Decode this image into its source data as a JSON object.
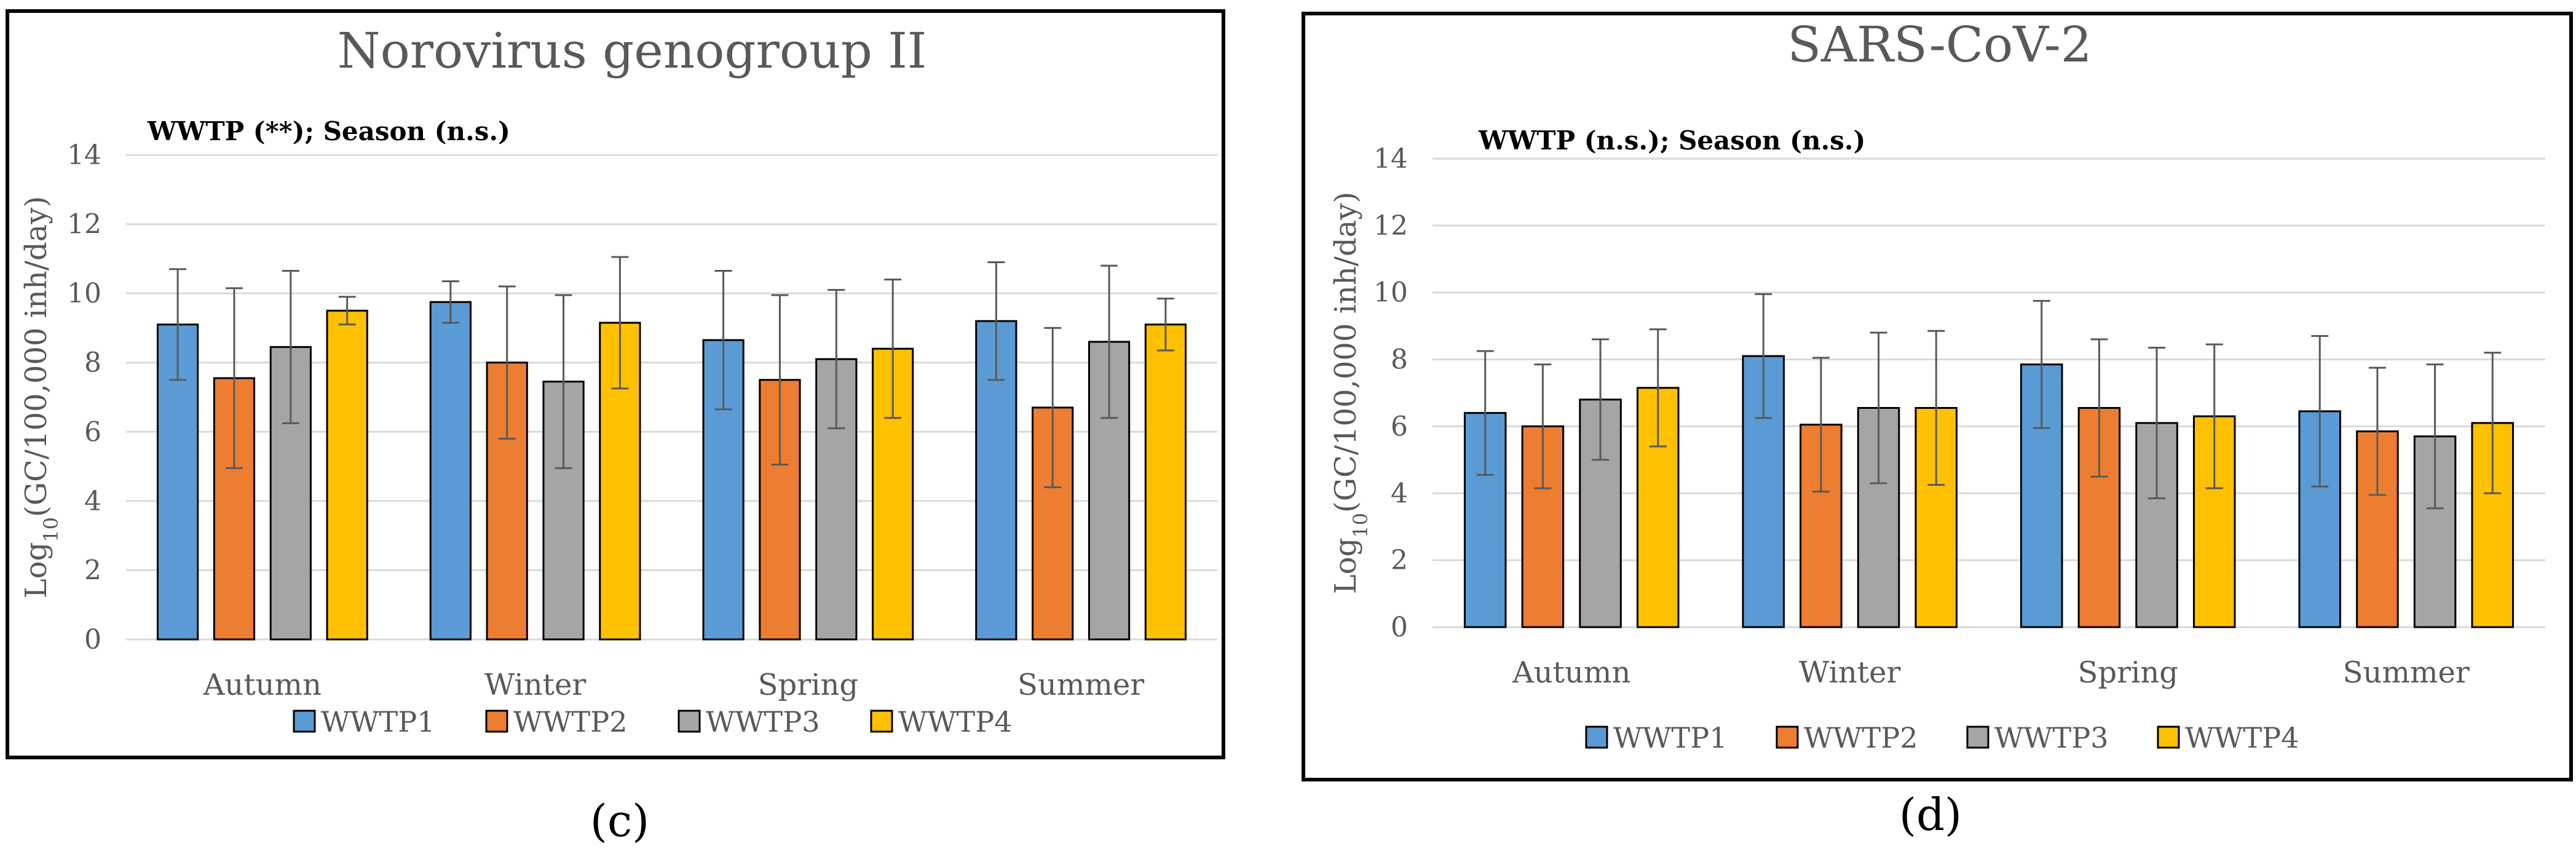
{
  "chart_data": [
    {
      "type": "bar",
      "panel_label": "(c)",
      "title": "Norovirus genogroup II",
      "annotation": "WWTP (**); Season (n.s.)",
      "ylabel_prefix": "Log",
      "ylabel_sub": "10",
      "ylabel_suffix": "(GC/100,000 inh/day)",
      "ylim": [
        0,
        14
      ],
      "yticks": [
        0,
        2,
        4,
        6,
        8,
        10,
        12,
        14
      ],
      "grid": true,
      "legend_position": "bottom",
      "categories": [
        "Autumn",
        "Winter",
        "Spring",
        "Summer"
      ],
      "series": [
        {
          "name": "WWTP1",
          "color": "#5b9bd5",
          "values": [
            9.1,
            9.75,
            8.65,
            9.2
          ],
          "errors": [
            1.6,
            0.6,
            2.0,
            1.7
          ]
        },
        {
          "name": "WWTP2",
          "color": "#ed7d31",
          "values": [
            7.55,
            8.0,
            7.5,
            6.7
          ],
          "errors": [
            2.6,
            2.2,
            2.45,
            2.3
          ]
        },
        {
          "name": "WWTP3",
          "color": "#a5a5a5",
          "values": [
            8.45,
            7.45,
            8.1,
            8.6
          ],
          "errors": [
            2.2,
            2.5,
            2.0,
            2.2
          ]
        },
        {
          "name": "WWTP4",
          "color": "#ffc000",
          "values": [
            9.5,
            9.15,
            8.4,
            9.1
          ],
          "errors": [
            0.4,
            1.9,
            2.0,
            0.75
          ]
        }
      ]
    },
    {
      "type": "bar",
      "panel_label": "(d)",
      "title": "SARS-CoV-2",
      "annotation": "WWTP (n.s.); Season (n.s.)",
      "ylabel_prefix": "Log",
      "ylabel_sub": "10",
      "ylabel_suffix": "(GC/100,000 inh/day)",
      "ylim": [
        0,
        14
      ],
      "yticks": [
        0,
        2,
        4,
        6,
        8,
        10,
        12,
        14
      ],
      "grid": true,
      "legend_position": "bottom",
      "categories": [
        "Autumn",
        "Winter",
        "Spring",
        "Summer"
      ],
      "series": [
        {
          "name": "WWTP1",
          "color": "#5b9bd5",
          "values": [
            6.4,
            8.1,
            7.85,
            6.45
          ],
          "errors": [
            1.85,
            1.85,
            1.9,
            2.25
          ]
        },
        {
          "name": "WWTP2",
          "color": "#ed7d31",
          "values": [
            6.0,
            6.05,
            6.55,
            5.85
          ],
          "errors": [
            1.85,
            2.0,
            2.05,
            1.9
          ]
        },
        {
          "name": "WWTP3",
          "color": "#a5a5a5",
          "values": [
            6.8,
            6.55,
            6.1,
            5.7
          ],
          "errors": [
            1.8,
            2.25,
            2.25,
            2.15
          ]
        },
        {
          "name": "WWTP4",
          "color": "#ffc000",
          "values": [
            7.15,
            6.55,
            6.3,
            6.1
          ],
          "errors": [
            1.75,
            2.3,
            2.15,
            2.1
          ]
        }
      ]
    }
  ]
}
